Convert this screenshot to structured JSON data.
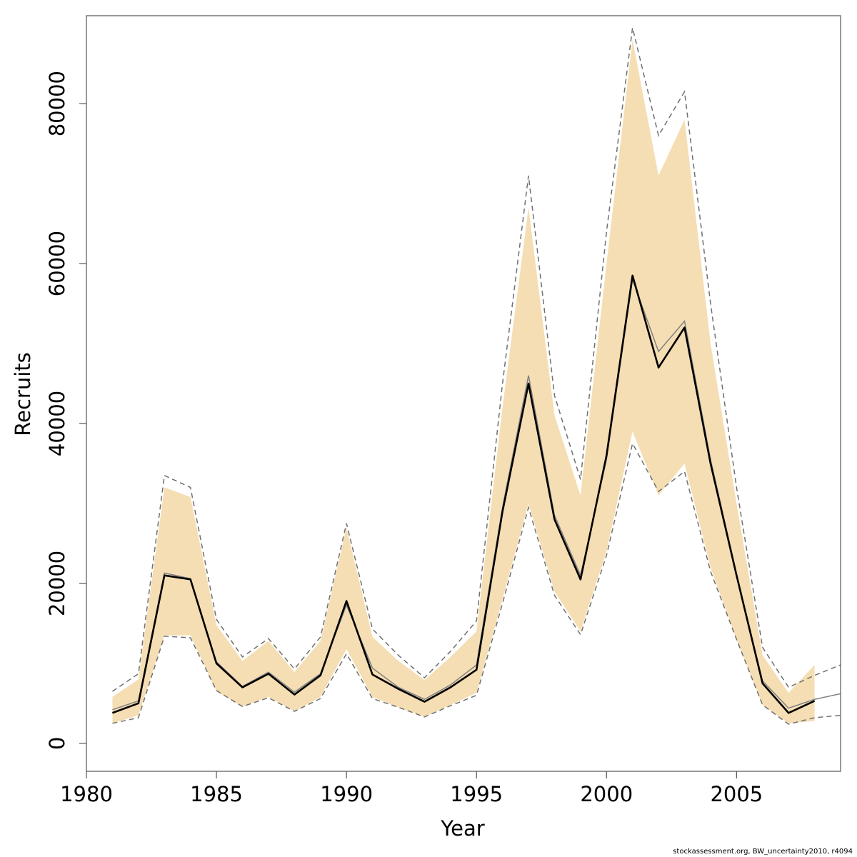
{
  "chart_data": {
    "type": "line",
    "xlabel": "Year",
    "ylabel": "Recruits",
    "xlim": [
      1980,
      2009
    ],
    "ylim": [
      -3500,
      91000
    ],
    "x_ticks": [
      1980,
      1985,
      1990,
      1995,
      2000,
      2005
    ],
    "y_ticks": [
      0,
      20000,
      40000,
      60000,
      80000
    ],
    "grid": false,
    "legend": "none",
    "colors": {
      "band": "#f5deb3",
      "median": "#000000",
      "alt_estimate": "#808080",
      "interval": "#707070"
    },
    "x": [
      1981,
      1982,
      1983,
      1984,
      1985,
      1986,
      1987,
      1988,
      1989,
      1990,
      1991,
      1992,
      1993,
      1994,
      1995,
      1996,
      1997,
      1998,
      1999,
      2000,
      2001,
      2002,
      2003,
      2004,
      2005,
      2006,
      2007,
      2008
    ],
    "series": [
      {
        "role": "band",
        "lower": [
          2500,
          3500,
          13500,
          13500,
          6500,
          4600,
          5800,
          4000,
          5800,
          11800,
          5800,
          4500,
          3300,
          4800,
          6300,
          18000,
          30000,
          19000,
          14000,
          24000,
          39000,
          31000,
          35000,
          22000,
          13000,
          4800,
          2500,
          2800
        ],
        "upper": [
          5800,
          8000,
          32000,
          30800,
          14800,
          10300,
          12800,
          8900,
          12800,
          27000,
          13300,
          10300,
          7900,
          10800,
          14000,
          42000,
          67000,
          41000,
          31000,
          60000,
          88000,
          71000,
          78000,
          50000,
          30000,
          11000,
          6300,
          9800
        ]
      },
      {
        "role": "median",
        "values": [
          3800,
          5000,
          21000,
          20500,
          10000,
          7000,
          8700,
          6100,
          8500,
          17800,
          8600,
          6800,
          5200,
          7000,
          9200,
          29000,
          45000,
          28000,
          20500,
          36000,
          58500,
          47000,
          52000,
          35000,
          21000,
          7500,
          3800,
          5300
        ]
      },
      {
        "role": "alt_estimate",
        "x": [
          1981,
          1982,
          1983,
          1984,
          1985,
          1986,
          1987,
          1988,
          1989,
          1990,
          1991,
          1992,
          1993,
          1994,
          1995,
          1996,
          1997,
          1998,
          1999,
          2000,
          2001,
          2002,
          2003,
          2004,
          2005,
          2006,
          2007,
          2008,
          2009
        ],
        "values": [
          4200,
          5300,
          21300,
          20600,
          10200,
          7100,
          8900,
          6400,
          8700,
          17300,
          9400,
          7000,
          5500,
          7300,
          9800,
          29500,
          46000,
          28500,
          21000,
          35500,
          58000,
          49000,
          52800,
          35500,
          21200,
          7800,
          4400,
          5500,
          6200
        ]
      },
      {
        "role": "interval_lower",
        "x": [
          1981,
          1982,
          1983,
          1984,
          1985,
          1986,
          1987,
          1988,
          1989,
          1990,
          1991,
          1992,
          1993,
          1994,
          1995,
          1996,
          1997,
          1998,
          1999,
          2000,
          2001,
          2002,
          2003,
          2004,
          2005,
          2006,
          2007,
          2008,
          2009
        ],
        "values": [
          2500,
          3200,
          13400,
          13200,
          6600,
          4600,
          5700,
          4000,
          5600,
          11200,
          5600,
          4500,
          3300,
          4700,
          6000,
          17500,
          29500,
          18500,
          13600,
          23500,
          37500,
          31500,
          34000,
          21500,
          13000,
          4800,
          2400,
          3200,
          3500
        ]
      },
      {
        "role": "interval_upper",
        "x": [
          1981,
          1982,
          1983,
          1984,
          1985,
          1986,
          1987,
          1988,
          1989,
          1990,
          1991,
          1992,
          1993,
          1994,
          1995,
          1996,
          1997,
          1998,
          1999,
          2000,
          2001,
          2002,
          2003,
          2004,
          2005,
          2006,
          2007,
          2008,
          2009
        ],
        "values": [
          6500,
          8700,
          33500,
          32000,
          15500,
          10800,
          13100,
          9300,
          13300,
          27500,
          14300,
          11000,
          8200,
          11500,
          15300,
          45000,
          71000,
          43500,
          33000,
          64000,
          89500,
          76000,
          81500,
          55000,
          32000,
          12000,
          7000,
          8500,
          9800
        ]
      }
    ]
  },
  "credit": "stockassessment.org, BW_uncertainty2010, r4094"
}
